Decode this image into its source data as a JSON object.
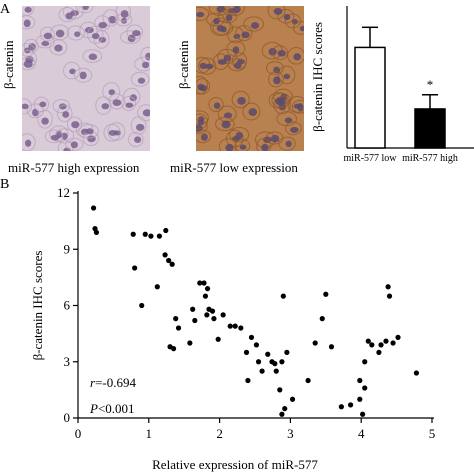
{
  "panels": {
    "a_label": "A",
    "b_label": "B"
  },
  "images": [
    {
      "side_label": "β-catenin",
      "caption": "miR-577 high expression",
      "colors": {
        "background": "#d9cbd8",
        "nucleus": "#7a5f8e",
        "cell_edge": "#b8a4bd"
      }
    },
    {
      "side_label": "β-catenin",
      "caption": "miR-577 low expression",
      "colors": {
        "background": "#b9814f",
        "nucleus": "#5b4a6c",
        "cell_edge": "#8e5a2e"
      }
    }
  ],
  "chart_data": [
    {
      "type": "bar",
      "ylabel": "β-catenin IHC scores",
      "ylim": [
        0,
        12
      ],
      "yticks": [
        "0",
        "3",
        "6",
        "9",
        "12"
      ],
      "categories": [
        "miR-577 low",
        "miR-577 high"
      ],
      "values": [
        8.5,
        3.3
      ],
      "errors": [
        1.7,
        1.2
      ],
      "bar_fills": [
        "#ffffff",
        "#000000"
      ],
      "annotation": "*"
    },
    {
      "type": "scatter",
      "xlabel": "Relative expression of miR-577",
      "ylabel": "β-catenin IHC scores",
      "xlim": [
        0,
        5
      ],
      "ylim": [
        0,
        12
      ],
      "xticks": [
        "0",
        "1",
        "2",
        "3",
        "4",
        "5"
      ],
      "yticks": [
        "0",
        "3",
        "6",
        "9",
        "12"
      ],
      "stats": {
        "r": "-0.694",
        "p": "0.001"
      },
      "points": [
        [
          0.22,
          11.2
        ],
        [
          0.24,
          10.1
        ],
        [
          0.26,
          9.9
        ],
        [
          0.78,
          9.8
        ],
        [
          0.8,
          8.0
        ],
        [
          0.95,
          9.8
        ],
        [
          1.03,
          9.7
        ],
        [
          1.12,
          7.0
        ],
        [
          1.15,
          9.7
        ],
        [
          1.23,
          8.7
        ],
        [
          1.24,
          10.0
        ],
        [
          1.28,
          8.4
        ],
        [
          1.33,
          8.2
        ],
        [
          0.9,
          6.0
        ],
        [
          1.3,
          3.8
        ],
        [
          1.38,
          5.3
        ],
        [
          1.42,
          4.8
        ],
        [
          1.35,
          3.7
        ],
        [
          1.62,
          5.8
        ],
        [
          1.58,
          4.0
        ],
        [
          1.65,
          5.2
        ],
        [
          1.72,
          7.2
        ],
        [
          1.78,
          7.2
        ],
        [
          1.8,
          6.5
        ],
        [
          1.83,
          6.9
        ],
        [
          1.82,
          5.5
        ],
        [
          1.85,
          5.8
        ],
        [
          1.9,
          5.7
        ],
        [
          1.92,
          5.3
        ],
        [
          1.98,
          4.2
        ],
        [
          2.05,
          5.5
        ],
        [
          2.15,
          4.9
        ],
        [
          2.22,
          4.9
        ],
        [
          2.3,
          4.8
        ],
        [
          2.38,
          3.5
        ],
        [
          2.4,
          2.0
        ],
        [
          2.45,
          4.3
        ],
        [
          2.52,
          3.9
        ],
        [
          2.55,
          3.0
        ],
        [
          2.6,
          2.5
        ],
        [
          2.68,
          3.4
        ],
        [
          2.74,
          3.0
        ],
        [
          2.78,
          2.9
        ],
        [
          2.8,
          2.5
        ],
        [
          2.85,
          1.5
        ],
        [
          2.88,
          3.0
        ],
        [
          2.88,
          0.2
        ],
        [
          2.9,
          6.5
        ],
        [
          2.92,
          0.5
        ],
        [
          2.95,
          3.5
        ],
        [
          3.03,
          1.0
        ],
        [
          3.25,
          2.0
        ],
        [
          3.35,
          4.0
        ],
        [
          3.45,
          5.3
        ],
        [
          3.5,
          6.6
        ],
        [
          3.58,
          3.8
        ],
        [
          3.72,
          0.6
        ],
        [
          3.85,
          0.7
        ],
        [
          3.98,
          1.0
        ],
        [
          3.98,
          2.0
        ],
        [
          4.02,
          0.2
        ],
        [
          4.05,
          1.6
        ],
        [
          4.05,
          3.0
        ],
        [
          4.1,
          4.1
        ],
        [
          4.15,
          3.9
        ],
        [
          4.25,
          3.5
        ],
        [
          4.28,
          3.9
        ],
        [
          4.35,
          4.1
        ],
        [
          4.38,
          7.0
        ],
        [
          4.4,
          6.5
        ],
        [
          4.45,
          4.0
        ],
        [
          4.52,
          4.3
        ],
        [
          4.78,
          2.4
        ]
      ]
    }
  ]
}
